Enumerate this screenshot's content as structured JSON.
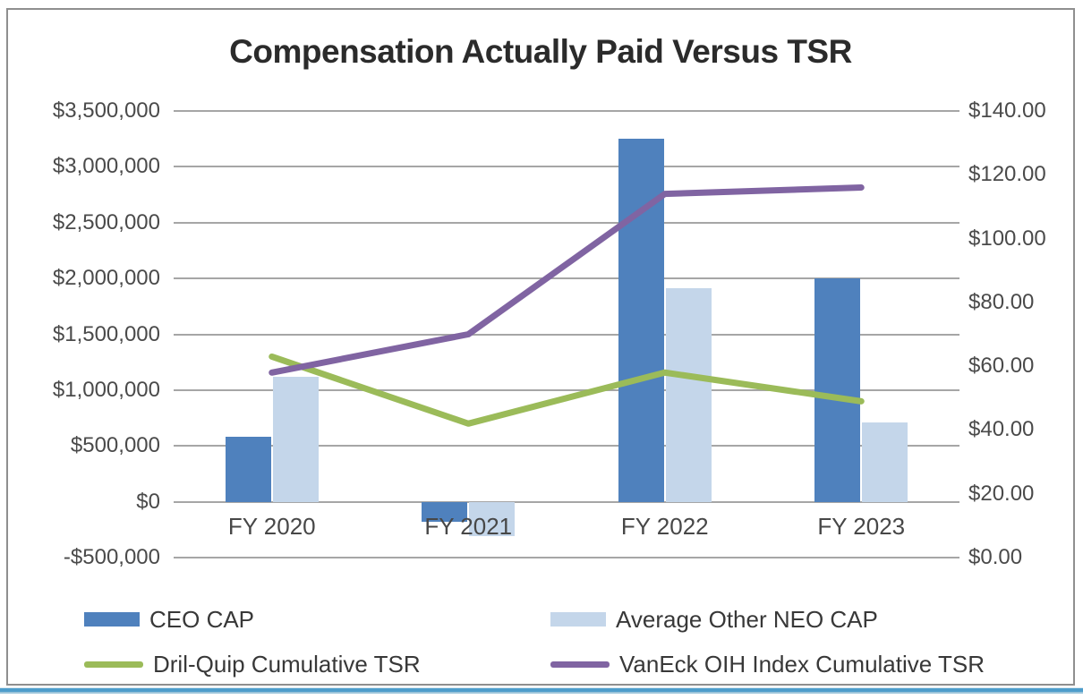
{
  "chart": {
    "title": "Compensation Actually Paid Versus TSR"
  },
  "chart_data": {
    "type": "combo-bar-line",
    "title": "Compensation Actually Paid Versus TSR",
    "categories": [
      "FY 2020",
      "FY 2021",
      "FY 2022",
      "FY 2023"
    ],
    "series": [
      {
        "name": "CEO CAP",
        "type": "bar",
        "axis": "left",
        "color": "#4F81BD",
        "values": [
          580000,
          -180000,
          3250000,
          2000000
        ]
      },
      {
        "name": "Average Other NEO CAP",
        "type": "bar",
        "axis": "left",
        "color": "#C4D6EA",
        "values": [
          1120000,
          -310000,
          1910000,
          710000
        ]
      },
      {
        "name": "Dril-Quip Cumulative TSR",
        "type": "line",
        "axis": "right",
        "color": "#9BBB59",
        "values": [
          63,
          42,
          58,
          49
        ]
      },
      {
        "name": "VanEck OIH Index Cumulative TSR",
        "type": "line",
        "axis": "right",
        "color": "#8064A2",
        "values": [
          58,
          70,
          114,
          116
        ]
      }
    ],
    "left_axis": {
      "min": -500000,
      "max": 3500000,
      "step": 500000,
      "tick_labels": [
        "$3,500,000",
        "$3,000,000",
        "$2,500,000",
        "$2,000,000",
        "$1,500,000",
        "$1,000,000",
        "$500,000",
        "$0",
        "-$500,000"
      ]
    },
    "right_axis": {
      "min": 0,
      "max": 140,
      "step": 20,
      "tick_labels": [
        "$140.00",
        "$120.00",
        "$100.00",
        "$80.00",
        "$60.00",
        "$40.00",
        "$20.00",
        "$0.00"
      ]
    },
    "grid": true,
    "legend_position": "bottom"
  },
  "colors": {
    "background": "#FFFFFF",
    "frame_border": "#8F8F8F",
    "gridline": "#A6A6A6",
    "axis_text": "#4A4A4A",
    "title_text": "#2B2B2B",
    "bottom_rule": "#4D9DCB"
  }
}
